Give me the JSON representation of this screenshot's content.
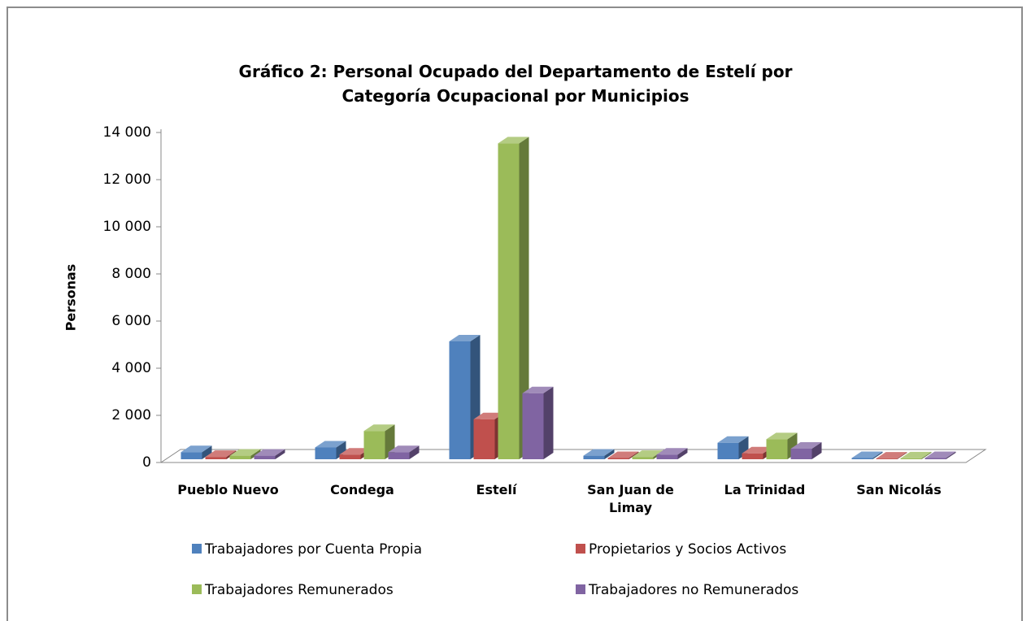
{
  "chart_data": {
    "type": "bar3d",
    "title": [
      "Gráfico 2: Personal Ocupado del Departamento de Estelí por",
      "Categoría Ocupacional por Municipios"
    ],
    "y_label": "Personas",
    "categories": [
      "Pueblo Nuevo",
      "Condega",
      "Estelí",
      "San Juan de Limay",
      "La Trinidad",
      "San Nicolás"
    ],
    "series": [
      {
        "name": "Trabajadores por Cuenta Propia",
        "color": "#4f81bd",
        "values": [
          300,
          500,
          5000,
          150,
          700,
          50
        ]
      },
      {
        "name": "Propietarios y Socios Activos",
        "color": "#c0504d",
        "values": [
          100,
          200,
          1700,
          50,
          250,
          30
        ]
      },
      {
        "name": "Trabajadores Remunerados",
        "color": "#9bbb59",
        "values": [
          150,
          1200,
          13400,
          100,
          850,
          40
        ]
      },
      {
        "name": "Trabajadores no Remunerados",
        "color": "#8064a2",
        "values": [
          150,
          300,
          2800,
          200,
          450,
          50
        ]
      }
    ],
    "ylim": [
      0,
      14000
    ],
    "yticks": [
      0,
      {
        "value": 2000,
        "label": "2 000"
      },
      {
        "value": 4000,
        "label": "4 000"
      },
      {
        "value": 6000,
        "label": "6 000"
      },
      {
        "value": 8000,
        "label": "8 000"
      },
      {
        "value": 10000,
        "label": "10 000"
      },
      {
        "value": 12000,
        "label": "12 000"
      },
      {
        "value": 14000,
        "label": "14 000"
      }
    ],
    "legend": "bottom"
  }
}
